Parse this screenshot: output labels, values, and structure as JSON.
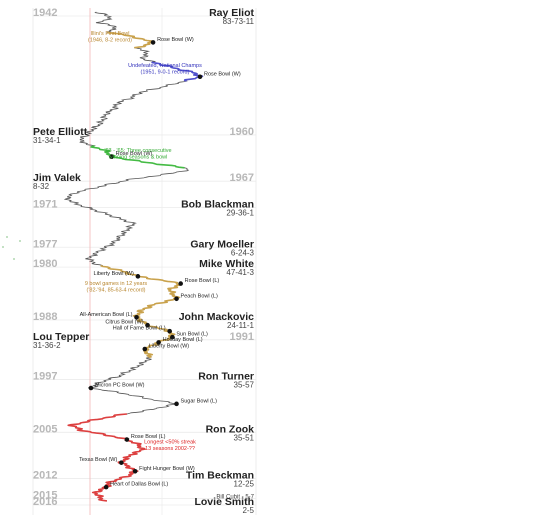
{
  "chart_data": {
    "type": "line",
    "orientation": "vertical-timeline",
    "years_range": [
      1942,
      2016
    ],
    "year_labels": [
      {
        "year": 1942,
        "label": "1942",
        "side": "left"
      },
      {
        "year": 1960,
        "label": "1960",
        "side": "right"
      },
      {
        "year": 1967,
        "label": "1967",
        "side": "right"
      },
      {
        "year": 1971,
        "label": "1971",
        "side": "left"
      },
      {
        "year": 1977,
        "label": "1977",
        "side": "left"
      },
      {
        "year": 1980,
        "label": "1980",
        "side": "left"
      },
      {
        "year": 1988,
        "label": "1988",
        "side": "left"
      },
      {
        "year": 1991,
        "label": "1991",
        "side": "right"
      },
      {
        "year": 1997,
        "label": "1997",
        "side": "left"
      },
      {
        "year": 2005,
        "label": "2005",
        "side": "left"
      },
      {
        "year": 2012,
        "label": "2012",
        "side": "left"
      },
      {
        "year": 2015,
        "label": "2015",
        "side": "left"
      },
      {
        "year": 2016,
        "label": "2016",
        "side": "left"
      }
    ],
    "coaches": [
      {
        "name": "Ray Eliot",
        "record": "83-73-11",
        "year": 1942,
        "side": "right"
      },
      {
        "name": "Pete Elliott",
        "record": "31-34-1",
        "year": 1960,
        "side": "left"
      },
      {
        "name": "Jim Valek",
        "record": "8-32",
        "year": 1967,
        "side": "left"
      },
      {
        "name": "Bob Blackman",
        "record": "29-36-1",
        "year": 1971,
        "side": "right"
      },
      {
        "name": "Gary Moeller",
        "record": "6-24-3",
        "year": 1977,
        "side": "right"
      },
      {
        "name": "Mike White",
        "record": "47-41-3",
        "year": 1980,
        "side": "right"
      },
      {
        "name": "John Mackovic",
        "record": "24-11-1",
        "year": 1988,
        "side": "right"
      },
      {
        "name": "Lou Tepper",
        "record": "31-36-2",
        "year": 1991,
        "side": "left"
      },
      {
        "name": "Ron Turner",
        "record": "35-57",
        "year": 1997,
        "side": "right"
      },
      {
        "name": "Ron Zook",
        "record": "35-51",
        "year": 2005,
        "side": "right"
      },
      {
        "name": "Tim Beckman",
        "record": "12-25",
        "year": 2012,
        "side": "right"
      },
      {
        "name": "Bill Cubit",
        "record": "5-7",
        "year": 2015,
        "side": "right",
        "inline": true
      },
      {
        "name": "Lovie Smith",
        "record": "2-5",
        "year": 2016,
        "side": "right"
      }
    ],
    "bowls": [
      {
        "label": "Rose Bowl (W)",
        "year": 1946.6,
        "pos": 0.66,
        "label_side": "right"
      },
      {
        "label": "Rose Bowl (W)",
        "year": 1951.8,
        "pos": 1.0,
        "label_side": "right"
      },
      {
        "label": "Rose Bowl (W)",
        "year": 1963.9,
        "pos": 0.36,
        "label_side": "right"
      },
      {
        "label": "Liberty Bowl (W)",
        "year": 1982.0,
        "pos": 0.55,
        "label_side": "left"
      },
      {
        "label": "Rose Bowl (L)",
        "year": 1983.1,
        "pos": 0.86,
        "label_side": "right"
      },
      {
        "label": "Peach Bowl (L)",
        "year": 1985.4,
        "pos": 0.83,
        "label_side": "right"
      },
      {
        "label": "All-American Bowl (L)",
        "year": 1988.2,
        "pos": 0.54,
        "label_side": "left"
      },
      {
        "label": "Citrus Bowl (W)",
        "year": 1989.4,
        "pos": 0.62,
        "label_side": "left"
      },
      {
        "label": "Hall of Fame Bowl (L)",
        "year": 1990.3,
        "pos": 0.78,
        "label_side": "left"
      },
      {
        "label": "Sun Bowl (L)",
        "year": 1991.2,
        "pos": 0.8,
        "label_side": "right"
      },
      {
        "label": "Holiday Bowl (L)",
        "year": 1992.0,
        "pos": 0.7,
        "label_side": "right"
      },
      {
        "label": "Liberty Bowl (W)",
        "year": 1993.0,
        "pos": 0.6,
        "label_side": "right"
      },
      {
        "label": "Micron PC Bowl (W)",
        "year": 1998.9,
        "pos": 0.21,
        "label_side": "right"
      },
      {
        "label": "Sugar Bowl (L)",
        "year": 2001.3,
        "pos": 0.83,
        "label_side": "right"
      },
      {
        "label": "Rose Bowl (L)",
        "year": 2006.7,
        "pos": 0.47,
        "label_side": "right"
      },
      {
        "label": "Texas Bowl (W)",
        "year": 2010.2,
        "pos": 0.43,
        "label_side": "left"
      },
      {
        "label": "Fight Hunger Bowl (W)",
        "year": 2011.5,
        "pos": 0.53,
        "label_side": "right"
      },
      {
        "label": "Heart of Dallas Bowl (L)",
        "year": 2013.9,
        "pos": 0.32,
        "label_side": "right"
      }
    ],
    "highlights": [
      {
        "color": "#c9a24c",
        "years": [
          1945,
          1947.4
        ]
      },
      {
        "color": "#5050cc",
        "years": [
          1949.5,
          1952.5
        ]
      },
      {
        "color": "#44bb44",
        "years": [
          1962.2,
          1965.6
        ]
      },
      {
        "color": "#c9a24c",
        "years": [
          1980.3,
          1994.3
        ]
      },
      {
        "color": "#dd4040",
        "years": [
          2002.8,
          2016.5
        ]
      }
    ],
    "annotations": [
      {
        "lines": [
          "Illini's First Bowl",
          "(1946, 8-2 record)"
        ],
        "color": "#b8862e",
        "year": 1945.5
      },
      {
        "lines": [
          "Undefeated, National Champs",
          "(1951, 9-0-1 record)"
        ],
        "color": "#3030bb",
        "year": 1950.3
      },
      {
        "lines": [
          "'63 - '65: Three consecutive",
          "winning seasons & bowl"
        ],
        "color": "#33aa33",
        "year": 1963.2
      },
      {
        "lines": [
          "9 bowl games in 12 years",
          "('82-'94, 85-63-4 record)"
        ],
        "color": "#b8862e",
        "year": 1983.3
      },
      {
        "lines": [
          "Longest <50% streak",
          "13 seasons 2002-??"
        ],
        "color": "#dd2222",
        "year": 2007.3
      }
    ]
  }
}
